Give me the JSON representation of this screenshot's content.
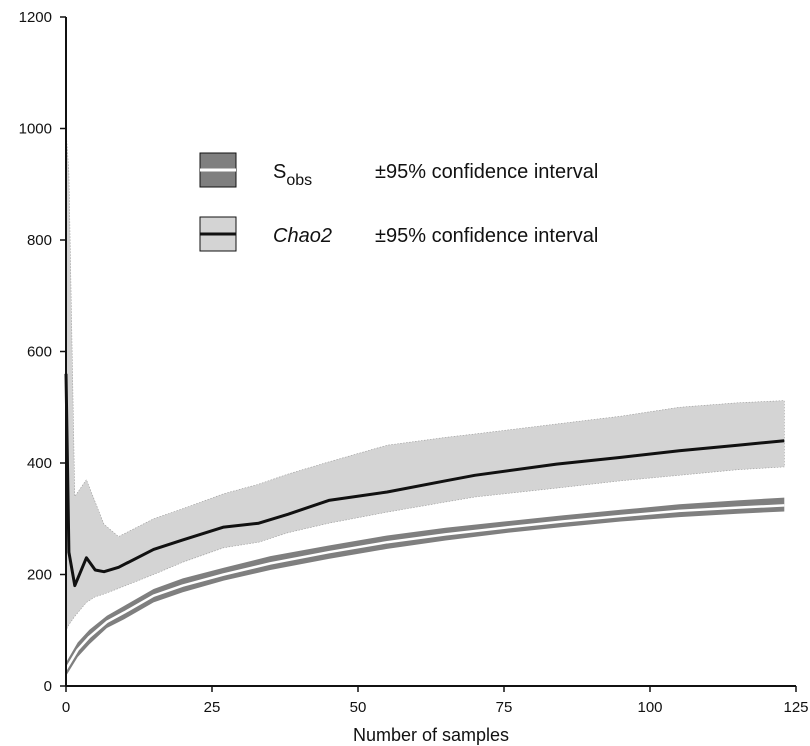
{
  "chart_data": {
    "type": "line",
    "title": "",
    "xlabel": "Number of samples",
    "ylabel": "",
    "xlim": [
      0,
      125
    ],
    "ylim": [
      0,
      1200
    ],
    "xticks": [
      0,
      25,
      50,
      75,
      100,
      125
    ],
    "yticks": [
      0,
      200,
      400,
      600,
      800,
      1000,
      1200
    ],
    "xtick_labels": [
      "0",
      "25",
      "50",
      "75",
      "100",
      "125"
    ],
    "ytick_labels": [
      "0",
      "200",
      "400",
      "600",
      "800",
      "1000",
      "1200"
    ],
    "grid": false,
    "legend_position": "upper-center",
    "legend": [
      {
        "symbol": "line-with-band",
        "label_main": "S",
        "label_sub": "obs",
        "italic": false,
        "ci_label": "±95% confidence interval",
        "line_color": "#ffffff",
        "band_color": "#7f7f7f"
      },
      {
        "symbol": "line-with-band",
        "label_main": "Chao2",
        "label_sub": "",
        "italic": true,
        "ci_label": "±95% confidence interval",
        "line_color": "#111111",
        "band_color": "#d4d4d4"
      }
    ],
    "series": [
      {
        "name": "Sobs",
        "color": "#ffffff",
        "band_color": "#7f7f7f",
        "x": [
          0,
          2,
          4,
          7,
          10,
          15,
          20,
          27,
          35,
          45,
          55,
          65,
          75,
          85,
          95,
          105,
          115,
          123
        ],
        "y": [
          30,
          65,
          88,
          115,
          132,
          162,
          180,
          200,
          220,
          240,
          258,
          272,
          284,
          295,
          305,
          314,
          320,
          324
        ],
        "lower": [
          18,
          52,
          75,
          104,
          120,
          150,
          168,
          189,
          208,
          228,
          246,
          261,
          274,
          285,
          295,
          303,
          309,
          313
        ],
        "upper": [
          42,
          78,
          101,
          126,
          144,
          174,
          193,
          212,
          233,
          252,
          270,
          284,
          295,
          306,
          316,
          326,
          333,
          338
        ]
      },
      {
        "name": "Chao2",
        "color": "#111111",
        "band_color": "#d4d4d4",
        "x": [
          0,
          0.5,
          1.5,
          3.5,
          5,
          6.5,
          9,
          15,
          20,
          27,
          33,
          38,
          45,
          55,
          65,
          70,
          84,
          95,
          105,
          115,
          123
        ],
        "y": [
          560,
          240,
          180,
          230,
          208,
          205,
          213,
          245,
          262,
          285,
          292,
          308,
          333,
          348,
          368,
          378,
          398,
          410,
          422,
          432,
          440
        ],
        "lower": [
          100,
          110,
          125,
          150,
          160,
          165,
          175,
          200,
          222,
          248,
          258,
          275,
          292,
          312,
          330,
          339,
          355,
          368,
          378,
          388,
          393
        ],
        "upper": [
          1000,
          920,
          340,
          370,
          330,
          290,
          268,
          300,
          318,
          345,
          362,
          380,
          402,
          432,
          446,
          452,
          470,
          484,
          500,
          508,
          512
        ]
      }
    ]
  }
}
